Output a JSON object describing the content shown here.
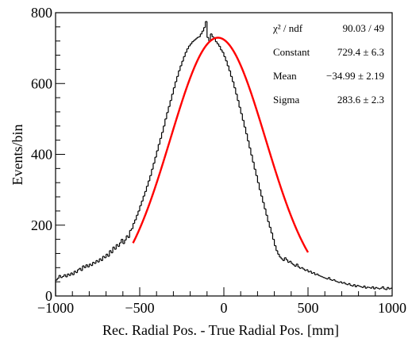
{
  "chart_data": {
    "type": "histogram",
    "xlabel": "Rec. Radial Pos. - True Radial Pos. [mm]",
    "ylabel": "Events/bin",
    "xlim": [
      -1000,
      1000
    ],
    "ylim": [
      0,
      800
    ],
    "xticks": [
      -1000,
      -500,
      0,
      500,
      1000
    ],
    "yticks": [
      0,
      200,
      400,
      600,
      800
    ],
    "grid": false,
    "bin_width": 10,
    "histogram": {
      "x_start": -1000,
      "counts": [
        45,
        50,
        58,
        52,
        55,
        60,
        54,
        62,
        58,
        65,
        60,
        70,
        66,
        74,
        78,
        72,
        85,
        80,
        88,
        82,
        90,
        86,
        95,
        92,
        100,
        96,
        105,
        100,
        112,
        108,
        118,
        112,
        128,
        122,
        138,
        132,
        145,
        140,
        150,
        160,
        148,
        158,
        170,
        165,
        185,
        190,
        205,
        215,
        228,
        240,
        255,
        268,
        282,
        295,
        310,
        325,
        340,
        358,
        375,
        392,
        410,
        428,
        445,
        462,
        480,
        500,
        518,
        535,
        552,
        570,
        588,
        605,
        620,
        636,
        650,
        663,
        676,
        688,
        698,
        706,
        712,
        718,
        722,
        726,
        730,
        732,
        740,
        748,
        758,
        775,
        730,
        720,
        740,
        732,
        728,
        718,
        712,
        705,
        695,
        688,
        676,
        664,
        650,
        636,
        620,
        605,
        588,
        570,
        552,
        533,
        515,
        496,
        477,
        458,
        438,
        418,
        398,
        378,
        358,
        340,
        320,
        300,
        282,
        264,
        246,
        228,
        210,
        194,
        178,
        160,
        142,
        128,
        118,
        110,
        105,
        100,
        108,
        102,
        95,
        98,
        92,
        88,
        84,
        90,
        82,
        78,
        80,
        76,
        72,
        74,
        68,
        70,
        64,
        66,
        60,
        62,
        58,
        56,
        54,
        52,
        50,
        48,
        52,
        46,
        44,
        46,
        42,
        40,
        38,
        40,
        36,
        38,
        34,
        32,
        35,
        30,
        28,
        32,
        26,
        30,
        28,
        26,
        24,
        28,
        22,
        25,
        24,
        22,
        26,
        20,
        24,
        22,
        20,
        22,
        26,
        20,
        18,
        24,
        20,
        22
      ]
    },
    "fit": {
      "function": "gaus",
      "x_range": [
        -540,
        500
      ],
      "constant": 729.4,
      "mean": -34.99,
      "sigma": 283.6,
      "color": "#ff0000"
    },
    "stats_box": {
      "rows": [
        {
          "name": "χ² / ndf",
          "value": "90.03 / 49"
        },
        {
          "name": "Constant",
          "value": "729.4 ± 6.3"
        },
        {
          "name": "Mean",
          "value": "−34.99 ± 2.19"
        },
        {
          "name": "Sigma",
          "value": "283.6 ± 2.3"
        }
      ]
    }
  }
}
